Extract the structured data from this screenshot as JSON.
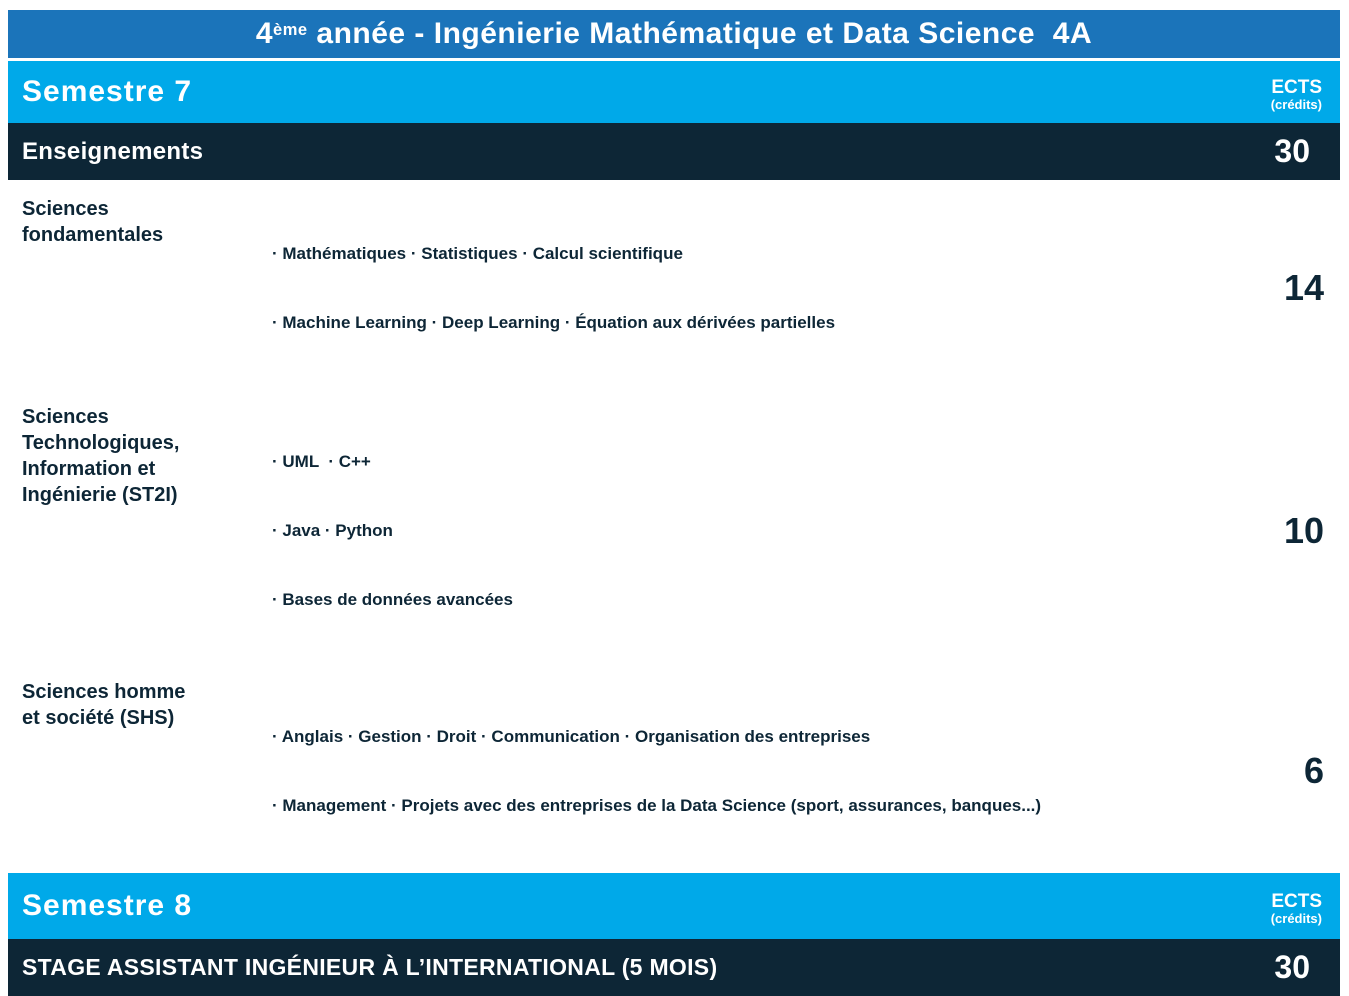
{
  "colors": {
    "banner_blue": "#1b74ba",
    "cyan": "#00a9e9",
    "navy": "#0d2636"
  },
  "banner": {
    "title_num": "4",
    "title_sup": "ème",
    "title_rest": " année - Ingénierie Mathématique et Data Science  4A"
  },
  "semester7": {
    "title": "Semestre 7",
    "ects": {
      "label": "ECTS",
      "sub": "(crédits)"
    },
    "header_row": {
      "label": "Enseignements",
      "credits": "30"
    },
    "rows": [
      {
        "category_lines": [
          "Sciences",
          "fondamentales"
        ],
        "bullet_lines": [
          "· Mathématiques · Statistiques · Calcul scientifique",
          "· Machine Learning · Deep Learning · Équation aux dérivées partielles"
        ],
        "credits": "14"
      },
      {
        "category_lines": [
          "Sciences",
          "Technologiques,",
          "Information et",
          "Ingénierie (ST2I)"
        ],
        "bullet_lines": [
          "· UML  · C++",
          "· Java · Python",
          "· Bases de données avancées"
        ],
        "credits": "10"
      },
      {
        "category_lines": [
          "Sciences homme",
          "et société (SHS)"
        ],
        "bullet_lines": [
          "· Anglais · Gestion · Droit · Communication · Organisation des entreprises",
          "· Management · Projets avec des entreprises de la Data Science (sport, assurances, banques...)"
        ],
        "credits": "6"
      }
    ]
  },
  "semester8": {
    "title": "Semestre 8",
    "ects": {
      "label": "ECTS",
      "sub": "(crédits)"
    },
    "header_row": {
      "label": "STAGE ASSISTANT INGÉNIEUR À L’INTERNATIONAL (5 MOIS)",
      "credits": "30"
    }
  }
}
